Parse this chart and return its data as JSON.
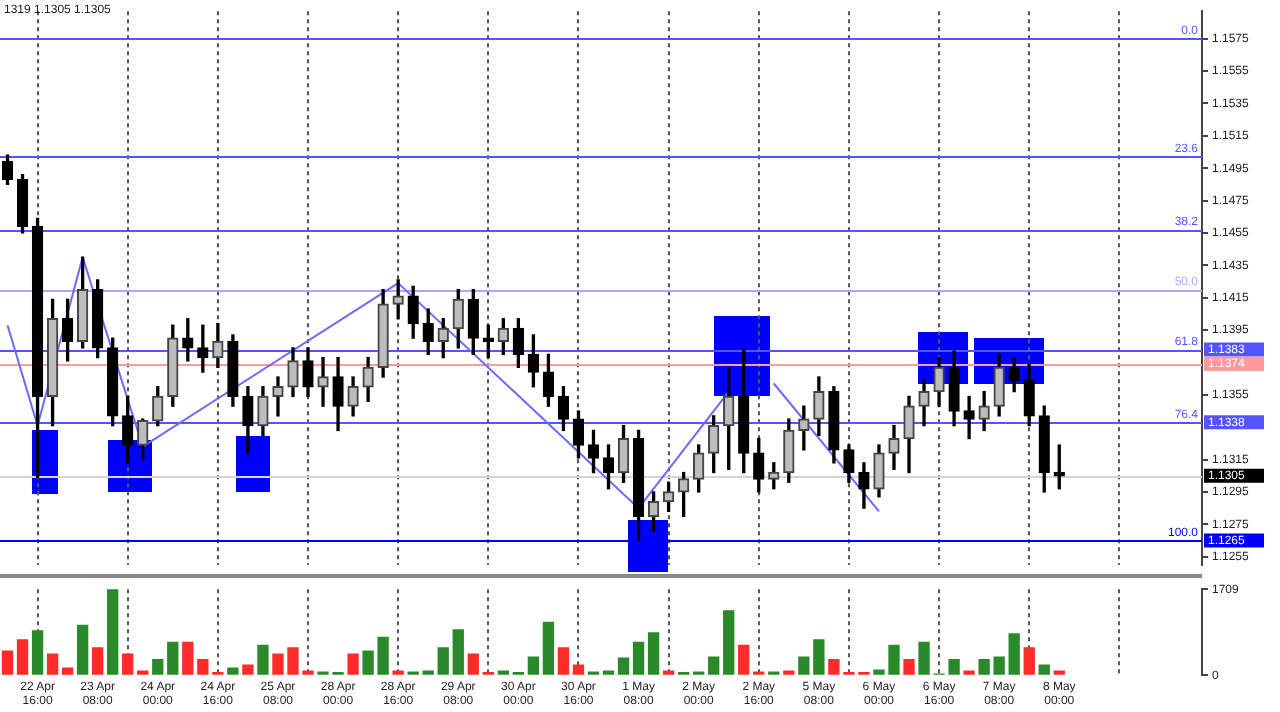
{
  "chart_data": [
    {
      "type": "candlestick",
      "categories": [
        null,
        null,
        null,
        null,
        null,
        null,
        null,
        null,
        null,
        null,
        null,
        null,
        null,
        null,
        null,
        null,
        null,
        null,
        null,
        null,
        null,
        null,
        null,
        null,
        null,
        null,
        null,
        null,
        null,
        null,
        null,
        null,
        null,
        null,
        null,
        null,
        null,
        null,
        null,
        null,
        null,
        null,
        null,
        null,
        null,
        null,
        null,
        null,
        null,
        null,
        null,
        null,
        null,
        null,
        null,
        null,
        null,
        null,
        null,
        null,
        null,
        null,
        null,
        null,
        null,
        null,
        null,
        null,
        null,
        null,
        null,
        null,
        null,
        null,
        null,
        null,
        null,
        null,
        null,
        null
      ],
      "ohlc": [
        [
          1.1499,
          1.1503,
          1.1485,
          1.1488
        ],
        [
          1.1488,
          1.1491,
          1.1455,
          1.1459
        ],
        [
          1.1459,
          1.1464,
          1.1304,
          1.1354
        ],
        [
          1.1354,
          1.1414,
          1.1336,
          1.1402
        ],
        [
          1.1402,
          1.1414,
          1.1376,
          1.1388
        ],
        [
          1.1388,
          1.144,
          1.1384,
          1.142
        ],
        [
          1.142,
          1.1426,
          1.1378,
          1.1384
        ],
        [
          1.1384,
          1.139,
          1.1336,
          1.1342
        ],
        [
          1.1342,
          1.1354,
          1.1313,
          1.1324
        ],
        [
          1.1324,
          1.134,
          1.1315,
          1.1339
        ],
        [
          1.1339,
          1.136,
          1.1336,
          1.1354
        ],
        [
          1.1354,
          1.1398,
          1.1348,
          1.139
        ],
        [
          1.139,
          1.1402,
          1.1376,
          1.1384
        ],
        [
          1.1384,
          1.1398,
          1.1369,
          1.1378
        ],
        [
          1.1378,
          1.1399,
          1.1372,
          1.1388
        ],
        [
          1.1388,
          1.1392,
          1.1348,
          1.1354
        ],
        [
          1.1354,
          1.136,
          1.1319,
          1.1336
        ],
        [
          1.1336,
          1.136,
          1.133,
          1.1354
        ],
        [
          1.1354,
          1.1366,
          1.1342,
          1.136
        ],
        [
          1.136,
          1.1384,
          1.1354,
          1.1376
        ],
        [
          1.1376,
          1.1384,
          1.1354,
          1.136
        ],
        [
          1.136,
          1.1378,
          1.1348,
          1.1366
        ],
        [
          1.1366,
          1.1378,
          1.1333,
          1.1348
        ],
        [
          1.1348,
          1.1366,
          1.1342,
          1.136
        ],
        [
          1.136,
          1.1378,
          1.1351,
          1.1372
        ],
        [
          1.1372,
          1.142,
          1.1366,
          1.1411
        ],
        [
          1.1411,
          1.1426,
          1.1402,
          1.1416
        ],
        [
          1.1416,
          1.1422,
          1.139,
          1.1399
        ],
        [
          1.1399,
          1.1408,
          1.138,
          1.1388
        ],
        [
          1.1388,
          1.1402,
          1.1378,
          1.1396
        ],
        [
          1.1396,
          1.142,
          1.1384,
          1.1414
        ],
        [
          1.1414,
          1.142,
          1.138,
          1.139
        ],
        [
          1.139,
          1.1398,
          1.1378,
          1.1388
        ],
        [
          1.1388,
          1.1402,
          1.138,
          1.1396
        ],
        [
          1.1396,
          1.1402,
          1.1372,
          1.138
        ],
        [
          1.138,
          1.1392,
          1.136,
          1.1369
        ],
        [
          1.1369,
          1.138,
          1.1348,
          1.1354
        ],
        [
          1.1354,
          1.136,
          1.1333,
          1.134
        ],
        [
          1.134,
          1.1345,
          1.1316,
          1.1324
        ],
        [
          1.1324,
          1.1333,
          1.1307,
          1.1316
        ],
        [
          1.1316,
          1.1324,
          1.1297,
          1.1307
        ],
        [
          1.1307,
          1.1336,
          1.1301,
          1.1328
        ],
        [
          1.1328,
          1.1333,
          1.1265,
          1.128
        ],
        [
          1.128,
          1.1295,
          1.1271,
          1.1289
        ],
        [
          1.1289,
          1.1301,
          1.1283,
          1.1295
        ],
        [
          1.1295,
          1.1307,
          1.128,
          1.1303
        ],
        [
          1.1303,
          1.1324,
          1.1295,
          1.1319
        ],
        [
          1.1319,
          1.1342,
          1.1307,
          1.1336
        ],
        [
          1.1336,
          1.1372,
          1.1309,
          1.1354
        ],
        [
          1.1354,
          1.1383,
          1.1307,
          1.1319
        ],
        [
          1.1319,
          1.1328,
          1.1295,
          1.1303
        ],
        [
          1.1303,
          1.1313,
          1.1297,
          1.1307
        ],
        [
          1.1307,
          1.134,
          1.1301,
          1.1333
        ],
        [
          1.1333,
          1.1348,
          1.1321,
          1.134
        ],
        [
          1.134,
          1.1366,
          1.133,
          1.1357
        ],
        [
          1.1357,
          1.136,
          1.1313,
          1.1321
        ],
        [
          1.1321,
          1.1324,
          1.1301,
          1.1307
        ],
        [
          1.1307,
          1.1313,
          1.1285,
          1.1297
        ],
        [
          1.1297,
          1.1324,
          1.1292,
          1.1319
        ],
        [
          1.1319,
          1.1336,
          1.1309,
          1.1328
        ],
        [
          1.1328,
          1.1354,
          1.1307,
          1.1348
        ],
        [
          1.1348,
          1.1364,
          1.1336,
          1.1357
        ],
        [
          1.1357,
          1.1378,
          1.1348,
          1.1372
        ],
        [
          1.1372,
          1.1382,
          1.1336,
          1.1345
        ],
        [
          1.1345,
          1.1354,
          1.1328,
          1.134
        ],
        [
          1.134,
          1.1357,
          1.1333,
          1.1348
        ],
        [
          1.1348,
          1.138,
          1.1342,
          1.1372
        ],
        [
          1.1372,
          1.1378,
          1.1357,
          1.1364
        ],
        [
          1.1364,
          1.1374,
          1.1336,
          1.1342
        ],
        [
          1.1342,
          1.1348,
          1.1295,
          1.1307
        ],
        [
          1.1307,
          1.1324,
          1.1297,
          1.1305
        ],
        null,
        null,
        null,
        null,
        null,
        null,
        null,
        null,
        null
      ],
      "series": [
        {
          "type": "line",
          "color": "#6b6bff",
          "values": [
            1.1398,
            null,
            1.1336,
            null,
            null,
            1.144,
            null,
            null,
            null,
            1.1323,
            null,
            null,
            null,
            null,
            null,
            null,
            null,
            null,
            null,
            null,
            null,
            null,
            null,
            null,
            null,
            null,
            1.1424,
            null,
            null,
            null,
            null,
            null,
            null,
            null,
            null,
            null,
            null,
            null,
            null,
            null,
            null,
            null,
            1.1285,
            null,
            null,
            null,
            null,
            null,
            1.1357,
            null,
            null,
            null,
            null,
            null,
            null,
            null,
            null,
            null,
            null,
            null,
            null,
            null,
            null,
            null,
            null,
            null,
            null,
            null,
            null,
            null,
            null,
            null,
            null,
            null,
            null,
            null,
            null,
            null,
            null,
            null
          ]
        },
        {
          "type": "line",
          "color": "#6b6bff",
          "values": [
            null,
            null,
            null,
            null,
            null,
            null,
            null,
            null,
            null,
            null,
            null,
            null,
            null,
            null,
            null,
            null,
            null,
            null,
            null,
            null,
            null,
            null,
            null,
            null,
            null,
            null,
            null,
            null,
            null,
            null,
            null,
            null,
            null,
            null,
            null,
            null,
            null,
            null,
            null,
            null,
            null,
            null,
            null,
            null,
            null,
            null,
            null,
            null,
            null,
            null,
            null,
            1.1362,
            null,
            null,
            null,
            null,
            null,
            null,
            1.1283,
            null,
            null,
            null,
            null,
            null,
            null,
            null,
            null,
            null,
            null,
            null,
            null,
            null,
            null,
            null,
            null,
            null,
            null,
            null,
            null,
            null
          ]
        }
      ],
      "ylim": [
        1.125,
        1.1592
      ],
      "yticks": [
        1.1255,
        1.1275,
        1.1295,
        1.1315,
        1.1355,
        1.1395,
        1.1415,
        1.1435,
        1.1455,
        1.1475,
        1.1495,
        1.1515,
        1.1535,
        1.1555,
        1.1575
      ],
      "ref_lines": [
        {
          "axis": "y",
          "value": 1.1575,
          "color": "#5555ff"
        },
        {
          "axis": "y",
          "value": 1.1502,
          "color": "#5555ff"
        },
        {
          "axis": "y",
          "value": 1.1457,
          "color": "#5555ff"
        },
        {
          "axis": "y",
          "value": 1.142,
          "color": "#a8a8ff"
        },
        {
          "axis": "y",
          "value": 1.1383,
          "label": "1.1383",
          "color": "#5555ff"
        },
        {
          "axis": "y",
          "value": 1.1374,
          "label": "1.1374",
          "color": "#ff9a9a"
        },
        {
          "axis": "y",
          "value": 1.1338,
          "label": "1.1338",
          "color": "#5555ff"
        },
        {
          "axis": "y",
          "value": 1.1305,
          "label": "1.1305",
          "color": "#d4d4d4"
        },
        {
          "axis": "y",
          "value": 1.1265,
          "label": "1.1265",
          "color": "#0000ff"
        }
      ],
      "annotations": [
        "1319 1.1305 1.1305",
        {
          "text": "0.0",
          "y": 1.1575
        },
        {
          "text": "23.6",
          "y": 1.1502
        },
        {
          "text": "38.2",
          "y": 1.1457
        },
        {
          "text": "50.0",
          "y": 1.142
        },
        {
          "text": "61.8",
          "y": 1.1383
        },
        {
          "text": "76.4",
          "y": 1.1338
        },
        {
          "text": "100.0",
          "y": 1.1265
        }
      ],
      "grid": "x",
      "tick_labels": "y"
    },
    {
      "type": "bar",
      "categories": [
        null,
        null,
        "22 Apr 16:00",
        null,
        null,
        null,
        "23 Apr 08:00",
        null,
        null,
        null,
        "24 Apr 00:00",
        null,
        null,
        null,
        "24 Apr 16:00",
        null,
        null,
        null,
        "25 Apr 08:00",
        null,
        null,
        null,
        "28 Apr 00:00",
        null,
        null,
        null,
        "28 Apr 16:00",
        null,
        null,
        null,
        "29 Apr 08:00",
        null,
        null,
        null,
        "30 Apr 00:00",
        null,
        null,
        null,
        "30 Apr 16:00",
        null,
        null,
        null,
        "1 May 08:00",
        null,
        null,
        null,
        "2 May 00:00",
        null,
        null,
        null,
        "2 May 16:00",
        null,
        null,
        null,
        "5 May 08:00",
        null,
        null,
        null,
        "6 May 00:00",
        null,
        null,
        null,
        "6 May 16:00",
        null,
        null,
        null,
        "7 May 08:00",
        null,
        null,
        null,
        "8 May 00:00",
        null,
        null,
        null,
        null,
        null,
        null,
        null,
        null,
        null
      ],
      "values": [
        480,
        700,
        880,
        420,
        140,
        990,
        540,
        1700,
        420,
        80,
        310,
        650,
        650,
        310,
        50,
        140,
        200,
        590,
        420,
        540,
        80,
        60,
        50,
        420,
        480,
        750,
        80,
        60,
        80,
        540,
        900,
        420,
        50,
        80,
        50,
        360,
        1050,
        540,
        200,
        60,
        80,
        340,
        650,
        840,
        80,
        50,
        60,
        360,
        1280,
        590,
        60,
        60,
        80,
        360,
        700,
        310,
        50,
        50,
        100,
        590,
        310,
        650,
        20,
        310,
        80,
        310,
        360,
        820,
        540,
        200,
        80,
        null,
        null,
        null,
        null,
        null,
        null,
        null,
        null,
        null
      ],
      "colors": [
        "#ff2a2a",
        "#ff2a2a",
        "#2a8a2a",
        "#ff2a2a",
        "#ff2a2a",
        "#2a8a2a",
        "#ff2a2a",
        "#2a8a2a",
        "#ff2a2a",
        "#ff2a2a",
        "#2a8a2a",
        "#2a8a2a",
        "#ff2a2a",
        "#ff2a2a",
        "#ff2a2a",
        "#2a8a2a",
        "#ff2a2a",
        "#2a8a2a",
        "#ff2a2a",
        "#ff2a2a",
        "#ff2a2a",
        "#2a8a2a",
        "#2a8a2a",
        "#ff2a2a",
        "#2a8a2a",
        "#2a8a2a",
        "#ff2a2a",
        "#2a8a2a",
        "#2a8a2a",
        "#2a8a2a",
        "#2a8a2a",
        "#ff2a2a",
        "#ff2a2a",
        "#2a8a2a",
        "#2a8a2a",
        "#2a8a2a",
        "#2a8a2a",
        "#ff2a2a",
        "#ff2a2a",
        "#2a8a2a",
        "#2a8a2a",
        "#2a8a2a",
        "#2a8a2a",
        "#2a8a2a",
        "#ff2a2a",
        "#2a8a2a",
        "#2a8a2a",
        "#2a8a2a",
        "#2a8a2a",
        "#ff2a2a",
        "#ff2a2a",
        "#2a8a2a",
        "#ff2a2a",
        "#2a8a2a",
        "#2a8a2a",
        "#ff2a2a",
        "#ff2a2a",
        "#ff2a2a",
        "#2a8a2a",
        "#2a8a2a",
        "#ff2a2a",
        "#2a8a2a",
        "#2a8a2a",
        "#2a8a2a",
        "#ff2a2a",
        "#2a8a2a",
        "#2a8a2a",
        "#2a8a2a",
        "#ff2a2a",
        "#2a8a2a",
        "#ff2a2a",
        null,
        null,
        null,
        null,
        null,
        null,
        null,
        null,
        null
      ],
      "ylim": [
        0,
        1709
      ],
      "yticks": [
        0,
        1709
      ],
      "grid": "x"
    }
  ]
}
